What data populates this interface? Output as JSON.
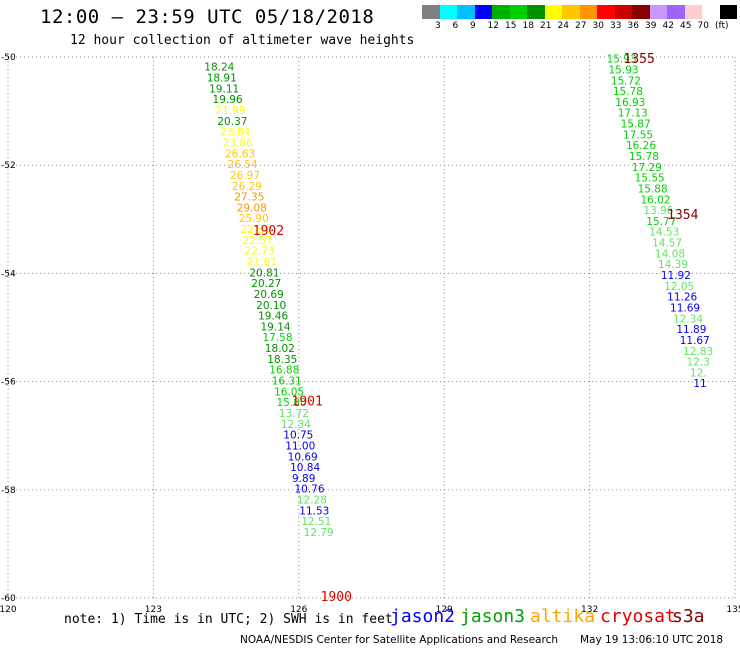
{
  "header": {
    "title": "12:00 – 23:59 UTC 05/18/2018",
    "subtitle": "12 hour collection of altimeter wave heights"
  },
  "colorbar": {
    "colors": [
      "#808080",
      "#00ffff",
      "#00bfff",
      "#0000ff",
      "#00b000",
      "#00d000",
      "#009000",
      "#ffff00",
      "#ffc800",
      "#ff9600",
      "#ff0000",
      "#c80000",
      "#8b0000",
      "#c896ff",
      "#9a66ff",
      "#ffcccc",
      "#ffffff",
      "#000000"
    ],
    "labels": [
      "3",
      "6",
      "9",
      "12",
      "15",
      "18",
      "21",
      "24",
      "27",
      "30",
      "33",
      "36",
      "39",
      "42",
      "45",
      "70",
      "(ft)"
    ]
  },
  "chart_data": {
    "type": "scatter",
    "xlim": [
      120,
      135
    ],
    "ylim": [
      -60,
      -50
    ],
    "xticks": [
      "120",
      "123",
      "126",
      "129",
      "132",
      "135"
    ],
    "yticks": [
      "-50",
      "-52",
      "-54",
      "-56",
      "-58",
      "-60"
    ],
    "grid": true,
    "tracks": [
      {
        "name": "track-west",
        "points": [
          {
            "lon": 124.05,
            "lat": -50.18,
            "v": "18.24",
            "c": "#009000"
          },
          {
            "lon": 124.1,
            "lat": -50.38,
            "v": "18.91",
            "c": "#009000"
          },
          {
            "lon": 124.15,
            "lat": -50.58,
            "v": "19.11",
            "c": "#009000"
          },
          {
            "lon": 124.22,
            "lat": -50.78,
            "v": "19.96",
            "c": "#009000"
          },
          {
            "lon": 124.28,
            "lat": -50.98,
            "v": "21.99",
            "c": "#ffff00"
          },
          {
            "lon": 124.32,
            "lat": -51.18,
            "v": "20.37",
            "c": "#009000"
          },
          {
            "lon": 124.38,
            "lat": -51.38,
            "v": "23.84",
            "c": "#ffff00"
          },
          {
            "lon": 124.43,
            "lat": -51.58,
            "v": "23.86",
            "c": "#ffff00"
          },
          {
            "lon": 124.48,
            "lat": -51.78,
            "v": "26.63",
            "c": "#ffc800"
          },
          {
            "lon": 124.53,
            "lat": -51.98,
            "v": "26.54",
            "c": "#ffc800"
          },
          {
            "lon": 124.58,
            "lat": -52.18,
            "v": "26.97",
            "c": "#ffc800"
          },
          {
            "lon": 124.62,
            "lat": -52.38,
            "v": "26.29",
            "c": "#ffc800"
          },
          {
            "lon": 124.67,
            "lat": -52.58,
            "v": "27.35",
            "c": "#ff9600"
          },
          {
            "lon": 124.72,
            "lat": -52.78,
            "v": "29.08",
            "c": "#ff9600"
          },
          {
            "lon": 124.76,
            "lat": -52.98,
            "v": "25.90",
            "c": "#ffc800"
          },
          {
            "lon": 124.8,
            "lat": -53.18,
            "v": "22.50",
            "c": "#ffff00"
          },
          {
            "lon": 124.84,
            "lat": -53.38,
            "v": "22.57",
            "c": "#ffff00"
          },
          {
            "lon": 124.88,
            "lat": -53.58,
            "v": "22.73",
            "c": "#ffff00"
          },
          {
            "lon": 124.93,
            "lat": -53.78,
            "v": "21.61",
            "c": "#ffff00"
          },
          {
            "lon": 124.98,
            "lat": -53.98,
            "v": "20.81",
            "c": "#009000"
          },
          {
            "lon": 125.02,
            "lat": -54.18,
            "v": "20.27",
            "c": "#009000"
          },
          {
            "lon": 125.07,
            "lat": -54.38,
            "v": "20.69",
            "c": "#009000"
          },
          {
            "lon": 125.12,
            "lat": -54.58,
            "v": "20.10",
            "c": "#009000"
          },
          {
            "lon": 125.16,
            "lat": -54.78,
            "v": "19.46",
            "c": "#009000"
          },
          {
            "lon": 125.21,
            "lat": -54.98,
            "v": "19.14",
            "c": "#009000"
          },
          {
            "lon": 125.25,
            "lat": -55.18,
            "v": "17.58",
            "c": "#00d000"
          },
          {
            "lon": 125.3,
            "lat": -55.38,
            "v": "18.02",
            "c": "#009000"
          },
          {
            "lon": 125.35,
            "lat": -55.58,
            "v": "18.35",
            "c": "#009000"
          },
          {
            "lon": 125.39,
            "lat": -55.78,
            "v": "16.88",
            "c": "#00d000"
          },
          {
            "lon": 125.44,
            "lat": -55.98,
            "v": "16.31",
            "c": "#00d000"
          },
          {
            "lon": 125.49,
            "lat": -56.18,
            "v": "16.05",
            "c": "#00d000"
          },
          {
            "lon": 125.54,
            "lat": -56.38,
            "v": "15.80",
            "c": "#00d000"
          },
          {
            "lon": 125.59,
            "lat": -56.58,
            "v": "13.72",
            "c": "#66e066"
          },
          {
            "lon": 125.63,
            "lat": -56.78,
            "v": "12.34",
            "c": "#66e066"
          },
          {
            "lon": 125.68,
            "lat": -56.98,
            "v": "10.75",
            "c": "#0000ff"
          },
          {
            "lon": 125.72,
            "lat": -57.18,
            "v": "11.00",
            "c": "#0000ff"
          },
          {
            "lon": 125.77,
            "lat": -57.38,
            "v": "10.69",
            "c": "#0000ff"
          },
          {
            "lon": 125.82,
            "lat": -57.58,
            "v": "10.84",
            "c": "#0000ff"
          },
          {
            "lon": 125.86,
            "lat": -57.78,
            "v": "9.89",
            "c": "#0000ff"
          },
          {
            "lon": 125.91,
            "lat": -57.98,
            "v": "10.76",
            "c": "#0000ff"
          },
          {
            "lon": 125.96,
            "lat": -58.18,
            "v": "12.28",
            "c": "#66e066"
          },
          {
            "lon": 126.01,
            "lat": -58.38,
            "v": "11.53",
            "c": "#0000ff"
          },
          {
            "lon": 126.05,
            "lat": -58.58,
            "v": "12.51",
            "c": "#66e066"
          },
          {
            "lon": 126.1,
            "lat": -58.78,
            "v": "12.79",
            "c": "#66e066"
          }
        ]
      },
      {
        "name": "track-east",
        "points": [
          {
            "lon": 132.35,
            "lat": -50.03,
            "v": "15.93",
            "c": "#00d000"
          },
          {
            "lon": 132.39,
            "lat": -50.23,
            "v": "15.93",
            "c": "#00d000"
          },
          {
            "lon": 132.44,
            "lat": -50.43,
            "v": "15.72",
            "c": "#00d000"
          },
          {
            "lon": 132.48,
            "lat": -50.63,
            "v": "15.78",
            "c": "#00d000"
          },
          {
            "lon": 132.53,
            "lat": -50.83,
            "v": "16.93",
            "c": "#00d000"
          },
          {
            "lon": 132.58,
            "lat": -51.03,
            "v": "17.13",
            "c": "#00d000"
          },
          {
            "lon": 132.64,
            "lat": -51.23,
            "v": "15.87",
            "c": "#00d000"
          },
          {
            "lon": 132.69,
            "lat": -51.43,
            "v": "17.55",
            "c": "#00d000"
          },
          {
            "lon": 132.75,
            "lat": -51.63,
            "v": "16.26",
            "c": "#00d000"
          },
          {
            "lon": 132.81,
            "lat": -51.83,
            "v": "15.78",
            "c": "#00d000"
          },
          {
            "lon": 132.87,
            "lat": -52.03,
            "v": "17.29",
            "c": "#00d000"
          },
          {
            "lon": 132.93,
            "lat": -52.23,
            "v": "15.55",
            "c": "#00d000"
          },
          {
            "lon": 132.99,
            "lat": -52.43,
            "v": "15.88",
            "c": "#00d000"
          },
          {
            "lon": 133.05,
            "lat": -52.63,
            "v": "16.02",
            "c": "#00d000"
          },
          {
            "lon": 133.11,
            "lat": -52.83,
            "v": "13.96",
            "c": "#66e066"
          },
          {
            "lon": 133.17,
            "lat": -53.03,
            "v": "15.77",
            "c": "#00d000"
          },
          {
            "lon": 133.23,
            "lat": -53.23,
            "v": "14.53",
            "c": "#66e066"
          },
          {
            "lon": 133.29,
            "lat": -53.43,
            "v": "14.57",
            "c": "#66e066"
          },
          {
            "lon": 133.35,
            "lat": -53.63,
            "v": "14.08",
            "c": "#66e066"
          },
          {
            "lon": 133.41,
            "lat": -53.83,
            "v": "14.39",
            "c": "#66e066"
          },
          {
            "lon": 133.47,
            "lat": -54.03,
            "v": "11.92",
            "c": "#0000ff"
          },
          {
            "lon": 133.54,
            "lat": -54.23,
            "v": "12.05",
            "c": "#66e066"
          },
          {
            "lon": 133.6,
            "lat": -54.43,
            "v": "11.26",
            "c": "#0000ff"
          },
          {
            "lon": 133.66,
            "lat": -54.63,
            "v": "11.69",
            "c": "#0000ff"
          },
          {
            "lon": 133.72,
            "lat": -54.83,
            "v": "12.34",
            "c": "#66e066"
          },
          {
            "lon": 133.79,
            "lat": -55.03,
            "v": "11.89",
            "c": "#0000ff"
          },
          {
            "lon": 133.86,
            "lat": -55.23,
            "v": "11.67",
            "c": "#0000ff"
          },
          {
            "lon": 133.93,
            "lat": -55.43,
            "v": "12.83",
            "c": "#66e066"
          },
          {
            "lon": 134.0,
            "lat": -55.63,
            "v": "12.3",
            "c": "#66e066"
          },
          {
            "lon": 134.07,
            "lat": -55.83,
            "v": "12.",
            "c": "#66e066"
          },
          {
            "lon": 134.14,
            "lat": -56.03,
            "v": "11",
            "c": "#0000ff"
          }
        ]
      }
    ],
    "time_labels": [
      {
        "lon": 125.05,
        "lat": -53.2,
        "t": "1902",
        "c": "#e00000"
      },
      {
        "lon": 125.85,
        "lat": -56.35,
        "t": "1901",
        "c": "#e00000"
      },
      {
        "lon": 126.45,
        "lat": -59.96,
        "t": "1900",
        "c": "#e00000"
      },
      {
        "lon": 132.7,
        "lat": -50.02,
        "t": "1355",
        "c": "#8b0000"
      },
      {
        "lon": 133.6,
        "lat": -52.9,
        "t": "1354",
        "c": "#8b0000"
      }
    ]
  },
  "footer": {
    "note": "note: 1) Time is in UTC; 2) SWH is in feet",
    "satellites": [
      {
        "name": "jason2",
        "color": "#0000ff"
      },
      {
        "name": "jason3",
        "color": "#00a000"
      },
      {
        "name": "altika",
        "color": "#ffa500"
      },
      {
        "name": "cryosat",
        "color": "#e00000"
      },
      {
        "name": "s3a",
        "color": "#8b0000"
      }
    ],
    "credit": "NOAA/NESDIS Center for Satellite Applications and Research",
    "timestamp": "May 19 13:06:10 UTC 2018"
  }
}
